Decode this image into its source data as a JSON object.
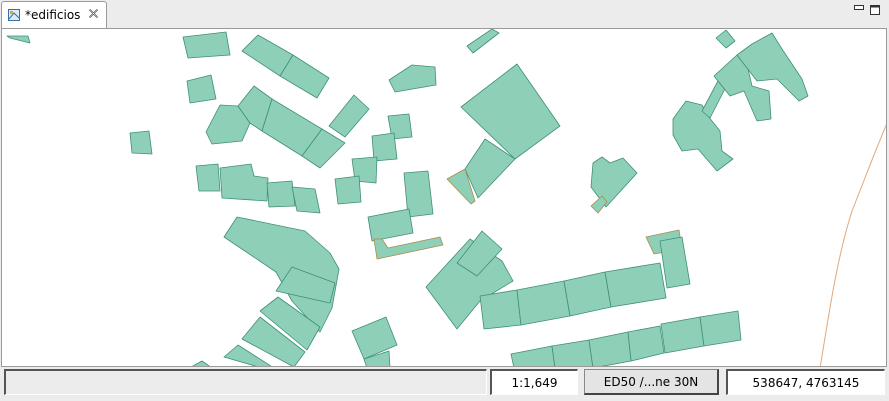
{
  "tab": {
    "title": "*edificios"
  },
  "status": {
    "message": "",
    "scale": "1:1,649",
    "projection": "ED50 /...ne 30N",
    "coordinates": "538647, 4763145"
  },
  "colors": {
    "building_fill": "#8ecfb8",
    "building_stroke": "#3f8f78",
    "selected_stroke": "#b08a4a",
    "road_line": "#e0a878"
  }
}
